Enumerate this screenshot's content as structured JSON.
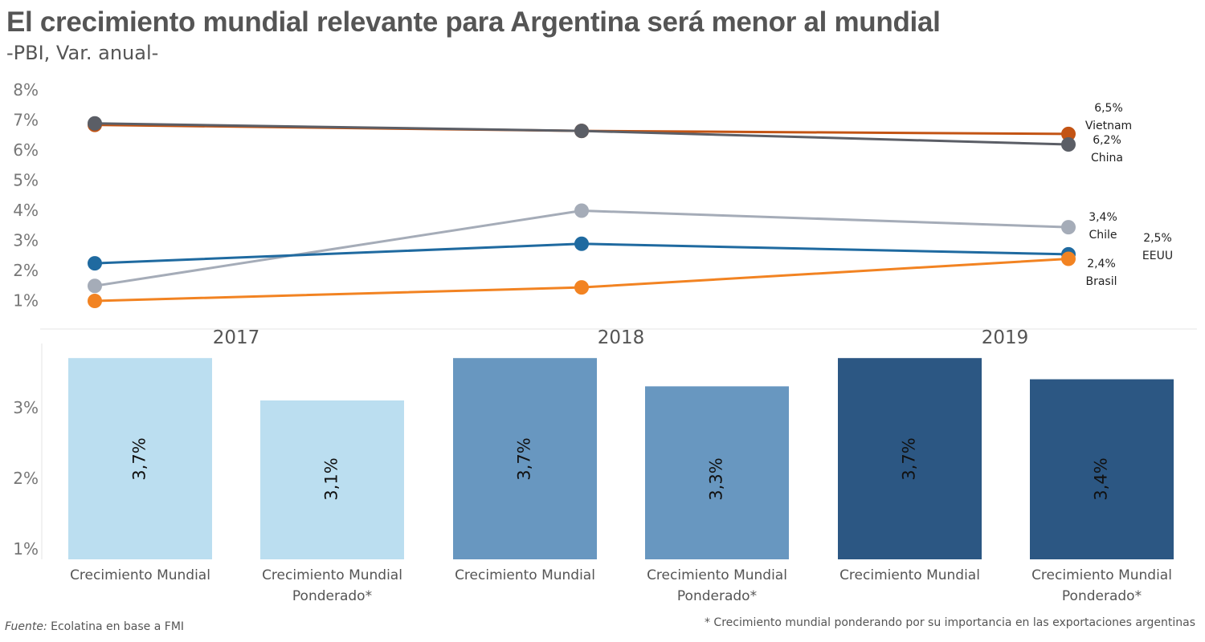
{
  "header": {
    "title": "El crecimiento mundial relevante para Argentina será menor al mundial",
    "subtitle": "-PBI, Var. anual-"
  },
  "footer": {
    "source_label": "Fuente:",
    "source_text": " Ecolatina en base a FMI",
    "note": "* Crecimiento mundial ponderando por su importancia en las exportaciones argentinas"
  },
  "chart_data": [
    {
      "type": "line",
      "x": [
        "2017",
        "2018",
        "2019"
      ],
      "y_ticks": [
        "8%",
        "7%",
        "6%",
        "5%",
        "4%",
        "3%",
        "2%",
        "1%"
      ],
      "ylim": [
        1,
        8
      ],
      "grid": false,
      "series": [
        {
          "name": "Vietnam",
          "values": [
            6.85,
            6.65,
            6.55
          ],
          "color": "#C35414",
          "end_label": "6,5%"
        },
        {
          "name": "China",
          "values": [
            6.9,
            6.65,
            6.2
          ],
          "color": "#5B5E66",
          "end_label": "6,2%"
        },
        {
          "name": "Chile",
          "values": [
            1.5,
            4.0,
            3.45
          ],
          "color": "#A5ACB8",
          "end_label": "3,4%"
        },
        {
          "name": "EEUU",
          "values": [
            2.25,
            2.9,
            2.55
          ],
          "color": "#1F6AA0",
          "end_label": "2,5%"
        },
        {
          "name": "Brasil",
          "values": [
            1.0,
            1.45,
            2.4
          ],
          "color": "#F28322",
          "end_label": "2,4%"
        }
      ]
    },
    {
      "type": "bar",
      "groups": [
        "2017",
        "2018",
        "2019"
      ],
      "categories": [
        "Crecimiento Mundial",
        "Crecimiento Mundial Ponderado*"
      ],
      "category_lines": [
        [
          "Crecimiento Mundial"
        ],
        [
          "Crecimiento Mundial",
          "Ponderado*"
        ]
      ],
      "values": [
        [
          3.7,
          3.1
        ],
        [
          3.7,
          3.3
        ],
        [
          3.7,
          3.4
        ]
      ],
      "labels": [
        [
          "3,7%",
          "3,1%"
        ],
        [
          "3,7%",
          "3,3%"
        ],
        [
          "3,7%",
          "3,4%"
        ]
      ],
      "group_colors": [
        "#BBDEF0",
        "#6897C0",
        "#2C5783"
      ],
      "y_ticks": [
        {
          "v": 3,
          "t": "3%"
        },
        {
          "v": 2,
          "t": "2%"
        },
        {
          "v": 1,
          "t": "1%"
        }
      ],
      "ylim": [
        0.85,
        3.7
      ]
    }
  ]
}
